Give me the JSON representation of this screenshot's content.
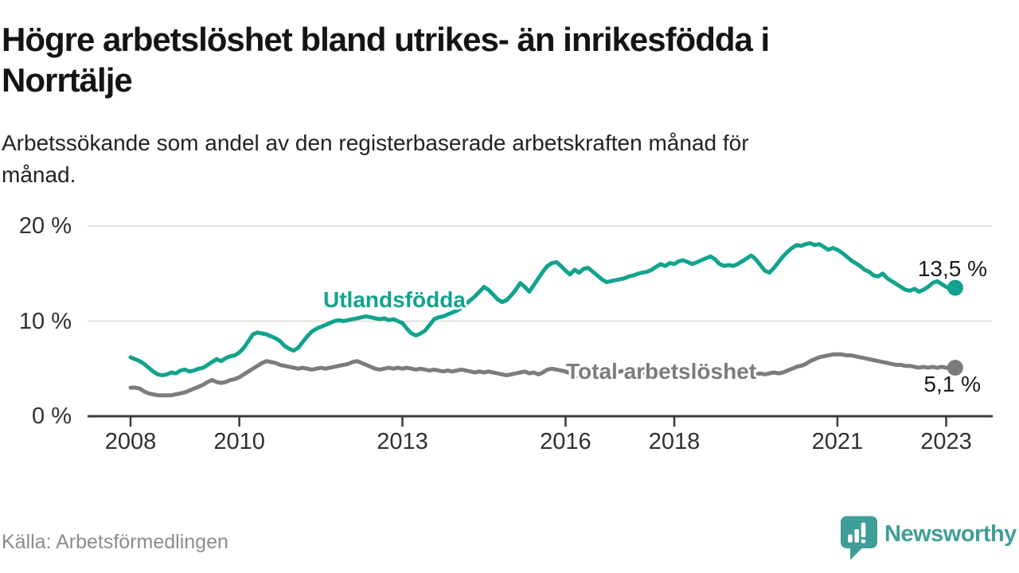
{
  "header": {
    "title_lines": [
      "Högre arbetslöshet bland utrikes- än inrikesfödda i",
      "Norrtälje"
    ],
    "subtitle_lines": [
      "Arbetssökande som andel av den registerbaserade arbetskraften månad för",
      "månad."
    ]
  },
  "footer": {
    "source": "Källa: Arbetsförmedlingen",
    "brand": "Newsworthy",
    "brand_color": "#3f9e98"
  },
  "chart_data": {
    "type": "line",
    "title": "Högre arbetslöshet bland utrikes- än inrikesfödda i Norrtälje",
    "subtitle": "Arbetssökande som andel av den registerbaserade arbetskraften månad för månad.",
    "x_unit": "month",
    "x_start": "2008-01",
    "x_end": "2023-03",
    "ylim": [
      0,
      20
    ],
    "grid": "horizontal",
    "legend_position": "inline-labels",
    "y_ticks": [
      {
        "value": 20,
        "label": "20 %"
      },
      {
        "value": 10,
        "label": "10 %"
      },
      {
        "value": 0,
        "label": "0 %"
      }
    ],
    "x_ticks": [
      {
        "year": 2008,
        "label": "2008"
      },
      {
        "year": 2010,
        "label": "2010"
      },
      {
        "year": 2013,
        "label": "2013"
      },
      {
        "year": 2016,
        "label": "2016"
      },
      {
        "year": 2018,
        "label": "2018"
      },
      {
        "year": 2021,
        "label": "2021"
      },
      {
        "year": 2023,
        "label": "2023"
      }
    ],
    "series": [
      {
        "name": "Utlandsfödda",
        "color": "#11a38d",
        "end_value": 13.5,
        "end_label": "13,5 %",
        "values": [
          6.2,
          6.0,
          5.8,
          5.5,
          5.1,
          4.7,
          4.4,
          4.3,
          4.4,
          4.6,
          4.5,
          4.8,
          4.9,
          4.7,
          4.8,
          5.0,
          5.1,
          5.4,
          5.7,
          6.0,
          5.8,
          6.1,
          6.3,
          6.4,
          6.7,
          7.2,
          7.9,
          8.6,
          8.8,
          8.7,
          8.6,
          8.4,
          8.2,
          7.9,
          7.4,
          7.1,
          6.9,
          7.2,
          7.8,
          8.4,
          8.9,
          9.2,
          9.4,
          9.6,
          9.8,
          10.0,
          10.1,
          10.0,
          10.1,
          10.2,
          10.3,
          10.4,
          10.5,
          10.4,
          10.3,
          10.2,
          10.3,
          10.1,
          10.2,
          10.0,
          9.8,
          9.2,
          8.7,
          8.5,
          8.7,
          9.0,
          9.6,
          10.2,
          10.4,
          10.5,
          10.7,
          10.9,
          11.1,
          11.4,
          11.8,
          12.2,
          12.6,
          13.1,
          13.6,
          13.3,
          12.8,
          12.3,
          12.0,
          12.2,
          12.7,
          13.3,
          14.0,
          13.6,
          13.1,
          13.8,
          14.5,
          15.2,
          15.8,
          16.1,
          16.2,
          15.8,
          15.3,
          14.9,
          15.4,
          15.1,
          15.5,
          15.6,
          15.2,
          14.8,
          14.4,
          14.1,
          14.2,
          14.3,
          14.4,
          14.5,
          14.7,
          14.8,
          15.0,
          15.1,
          15.2,
          15.4,
          15.7,
          16.0,
          15.8,
          16.1,
          16.0,
          16.3,
          16.4,
          16.2,
          16.0,
          16.2,
          16.4,
          16.6,
          16.8,
          16.5,
          16.0,
          15.8,
          15.9,
          15.8,
          16.0,
          16.3,
          16.6,
          16.9,
          16.5,
          15.9,
          15.3,
          15.1,
          15.6,
          16.2,
          16.8,
          17.3,
          17.7,
          18.0,
          17.9,
          18.1,
          18.2,
          18.0,
          18.1,
          17.8,
          17.5,
          17.7,
          17.5,
          17.2,
          16.8,
          16.4,
          16.1,
          15.8,
          15.4,
          15.2,
          14.8,
          14.7,
          15.0,
          14.5,
          14.2,
          13.9,
          13.6,
          13.3,
          13.2,
          13.4,
          13.1,
          13.3,
          13.6,
          14.0,
          14.2,
          13.9,
          13.6,
          13.4,
          13.5
        ]
      },
      {
        "name": "Total arbetslöshet",
        "color": "#7c7c7c",
        "end_value": 5.1,
        "end_label": "5,1 %",
        "values": [
          3.0,
          3.0,
          2.9,
          2.6,
          2.4,
          2.3,
          2.2,
          2.2,
          2.2,
          2.2,
          2.3,
          2.4,
          2.5,
          2.7,
          2.9,
          3.1,
          3.3,
          3.6,
          3.8,
          3.6,
          3.5,
          3.6,
          3.8,
          3.9,
          4.1,
          4.4,
          4.7,
          5.0,
          5.3,
          5.6,
          5.8,
          5.7,
          5.6,
          5.4,
          5.3,
          5.2,
          5.1,
          5.0,
          5.1,
          5.0,
          4.9,
          5.0,
          5.1,
          5.0,
          5.1,
          5.2,
          5.3,
          5.4,
          5.5,
          5.7,
          5.8,
          5.6,
          5.4,
          5.2,
          5.0,
          4.9,
          5.0,
          5.1,
          5.0,
          5.1,
          5.0,
          5.1,
          5.0,
          4.9,
          5.0,
          4.9,
          4.8,
          4.9,
          4.8,
          4.7,
          4.8,
          4.7,
          4.8,
          4.9,
          4.8,
          4.7,
          4.6,
          4.7,
          4.6,
          4.7,
          4.6,
          4.5,
          4.4,
          4.3,
          4.4,
          4.5,
          4.6,
          4.7,
          4.5,
          4.6,
          4.4,
          4.6,
          4.9,
          5.0,
          4.9,
          4.8,
          4.7,
          4.5,
          4.3,
          4.2,
          4.3,
          4.4,
          4.6,
          4.7,
          4.7,
          4.8,
          4.7,
          4.6,
          4.7,
          4.8,
          4.7,
          4.6,
          4.7,
          4.6,
          4.5,
          4.6,
          4.5,
          4.6,
          4.5,
          4.4,
          4.5,
          4.4,
          4.3,
          4.4,
          4.3,
          4.2,
          4.3,
          4.2,
          4.3,
          4.2,
          4.3,
          4.2,
          4.2,
          4.3,
          4.2,
          4.3,
          4.4,
          4.3,
          4.4,
          4.5,
          4.4,
          4.5,
          4.6,
          4.5,
          4.6,
          4.8,
          5.0,
          5.2,
          5.3,
          5.5,
          5.8,
          6.0,
          6.2,
          6.3,
          6.4,
          6.5,
          6.5,
          6.5,
          6.4,
          6.4,
          6.3,
          6.2,
          6.1,
          6.0,
          5.9,
          5.8,
          5.7,
          5.6,
          5.5,
          5.4,
          5.4,
          5.3,
          5.3,
          5.2,
          5.1,
          5.2,
          5.1,
          5.2,
          5.1,
          5.2,
          5.1,
          5.1,
          5.1
        ]
      }
    ]
  }
}
